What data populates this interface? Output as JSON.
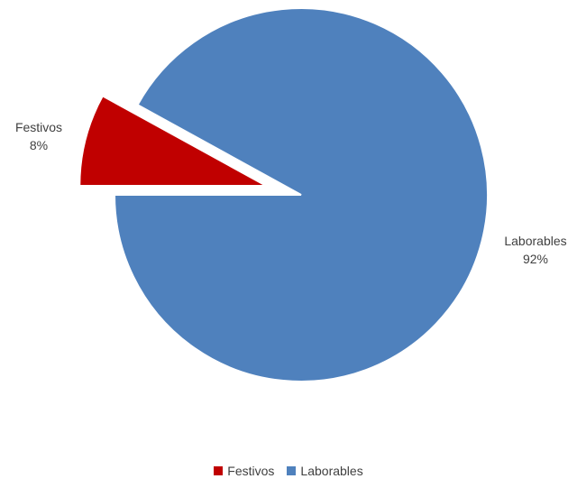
{
  "chart_data": {
    "type": "pie",
    "title": "",
    "categories": [
      "Festivos",
      "Laborables"
    ],
    "values": [
      8,
      92
    ],
    "value_unit": "%",
    "exploded": [
      "Festivos"
    ],
    "data_labels": [
      {
        "category": "Festivos",
        "value": "8%"
      },
      {
        "category": "Laborables",
        "value": "92%"
      }
    ],
    "colors": [
      "#C00000",
      "#4F81BD"
    ],
    "legend": {
      "position": "bottom",
      "entries": [
        "Festivos",
        "Laborables"
      ]
    }
  }
}
